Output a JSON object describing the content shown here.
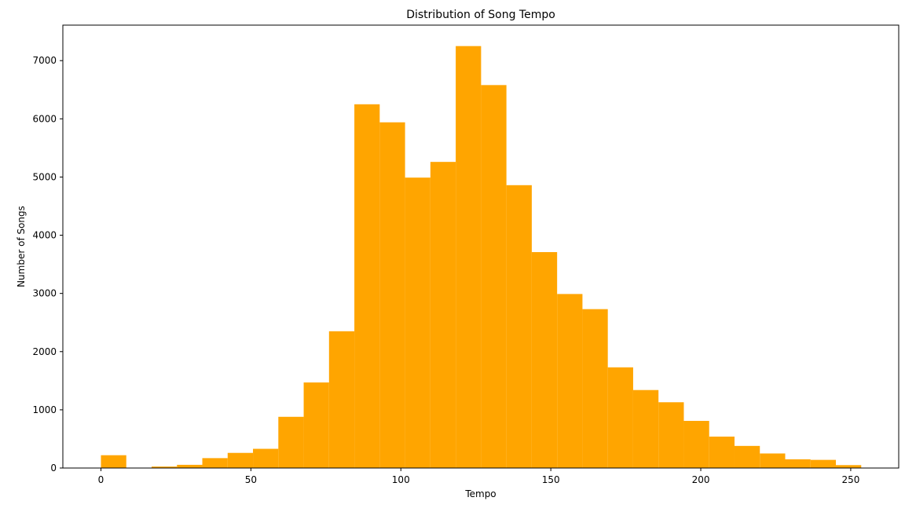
{
  "chart_data": {
    "type": "bar",
    "title": "Distribution of Song Tempo",
    "xlabel": "Tempo",
    "ylabel": "Number of Songs",
    "bar_color": "#ffa500",
    "xlim": [
      -12.7,
      266.0
    ],
    "ylim": [
      0,
      7610
    ],
    "x_ticks": [
      0,
      50,
      100,
      150,
      200,
      250
    ],
    "y_ticks": [
      0,
      1000,
      2000,
      3000,
      4000,
      5000,
      6000,
      7000
    ],
    "bin_width": 8.45,
    "bins_start": [
      0.0,
      8.45,
      16.9,
      25.35,
      33.8,
      42.25,
      50.7,
      59.15,
      67.6,
      76.05,
      84.5,
      92.95,
      101.4,
      109.85,
      118.3,
      126.75,
      135.2,
      143.65,
      152.1,
      160.55,
      169.0,
      177.45,
      185.9,
      194.35,
      202.8,
      211.25,
      219.7,
      228.15,
      236.6,
      245.05
    ],
    "values": [
      220,
      5,
      25,
      55,
      170,
      260,
      330,
      880,
      1470,
      2350,
      6250,
      5940,
      4990,
      5260,
      7250,
      6580,
      4860,
      3710,
      2990,
      2730,
      1730,
      1340,
      1130,
      810,
      540,
      380,
      250,
      150,
      140,
      50
    ],
    "grid": false,
    "legend": "none"
  }
}
